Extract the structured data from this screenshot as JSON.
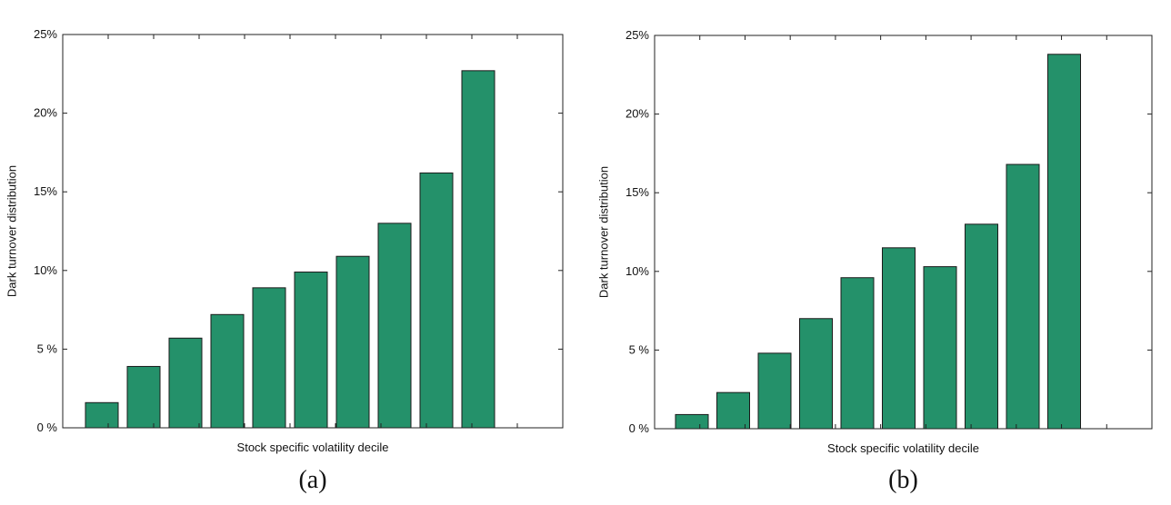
{
  "chart_data": [
    {
      "type": "bar",
      "panel_label": "(a)",
      "xlabel": "Stock specific volatility decile",
      "ylabel": "Dark turnover distribution",
      "ylim": [
        0,
        25
      ],
      "yticks": [
        0,
        5,
        10,
        15,
        20,
        25
      ],
      "ytick_labels": [
        "0 %",
        "5 %",
        "10%",
        "15%",
        "20%",
        "25%"
      ],
      "values": [
        1.6,
        3.9,
        5.7,
        7.2,
        8.9,
        9.9,
        10.9,
        13.0,
        16.2,
        22.7
      ],
      "bar_color": "#24916a",
      "grid": false
    },
    {
      "type": "bar",
      "panel_label": "(b)",
      "xlabel": "Stock specific volatility decile",
      "ylabel": "Dark turnover distribution",
      "ylim": [
        0,
        25
      ],
      "yticks": [
        0,
        5,
        10,
        15,
        20,
        25
      ],
      "ytick_labels": [
        "0 %",
        "5 %",
        "10%",
        "15%",
        "20%",
        "25%"
      ],
      "values": [
        0.9,
        2.3,
        4.8,
        7.0,
        9.6,
        11.5,
        10.3,
        13.0,
        16.8,
        23.8
      ],
      "bar_color": "#24916a",
      "grid": false
    }
  ]
}
